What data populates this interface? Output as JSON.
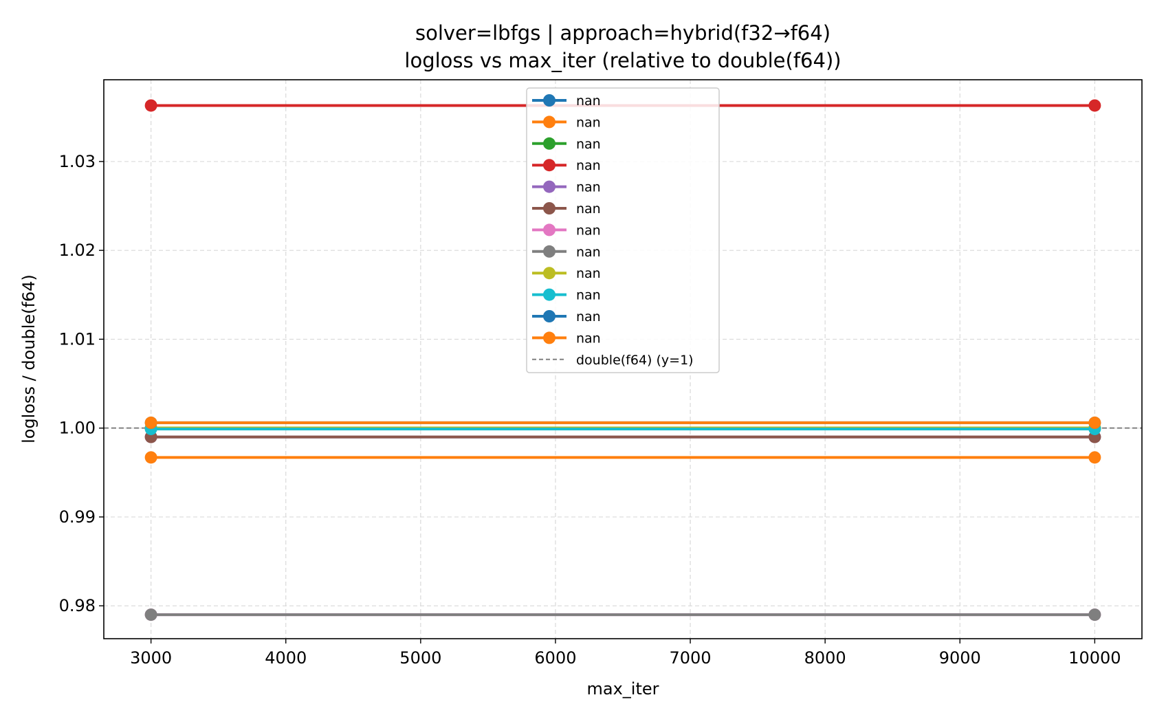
{
  "chart_data": {
    "type": "line",
    "title": "solver=lbfgs | approach=hybrid(f32→f64)",
    "subtitle": "logloss vs max_iter (relative to double(f64))",
    "xlabel": "max_iter",
    "ylabel": "logloss / double(f64)",
    "xlim": [
      2650,
      10350
    ],
    "ylim": [
      0.9763,
      1.0392
    ],
    "xticks": [
      3000,
      4000,
      5000,
      6000,
      7000,
      8000,
      9000,
      10000
    ],
    "yticks": [
      0.98,
      0.99,
      1.0,
      1.01,
      1.02,
      1.03
    ],
    "ytick_labels": [
      "0.98",
      "0.99",
      "1.00",
      "1.01",
      "1.02",
      "1.03"
    ],
    "grid": true,
    "legend_position": "top-center",
    "x": [
      3000,
      10000
    ],
    "series": [
      {
        "name": "nan",
        "color": "#1f77b4",
        "values": [
          1.0,
          1.0
        ]
      },
      {
        "name": "nan",
        "color": "#ff7f0e",
        "values": [
          0.9967,
          0.9967
        ]
      },
      {
        "name": "nan",
        "color": "#2ca02c",
        "values": [
          1.0,
          1.0
        ]
      },
      {
        "name": "nan",
        "color": "#d62728",
        "values": [
          1.0363,
          1.0363
        ]
      },
      {
        "name": "nan",
        "color": "#9467bd",
        "values": [
          0.999,
          0.999
        ]
      },
      {
        "name": "nan",
        "color": "#8c564b",
        "values": [
          0.999,
          0.999
        ]
      },
      {
        "name": "nan",
        "color": "#e377c2",
        "values": [
          0.979,
          0.979
        ]
      },
      {
        "name": "nan",
        "color": "#7f7f7f",
        "values": [
          0.979,
          0.979
        ]
      },
      {
        "name": "nan",
        "color": "#bcbd22",
        "values": [
          1.0,
          1.0
        ]
      },
      {
        "name": "nan",
        "color": "#17becf",
        "values": [
          0.9999,
          0.9999
        ]
      },
      {
        "name": "nan",
        "color": "#1f77b4",
        "values": [
          1.0006,
          1.0006
        ]
      },
      {
        "name": "nan",
        "color": "#ff7f0e",
        "values": [
          1.0006,
          1.0006
        ]
      }
    ],
    "reference_line": {
      "name": "double(f64) (y=1)",
      "y": 1.0,
      "color": "#808080",
      "style": "dashed"
    }
  }
}
